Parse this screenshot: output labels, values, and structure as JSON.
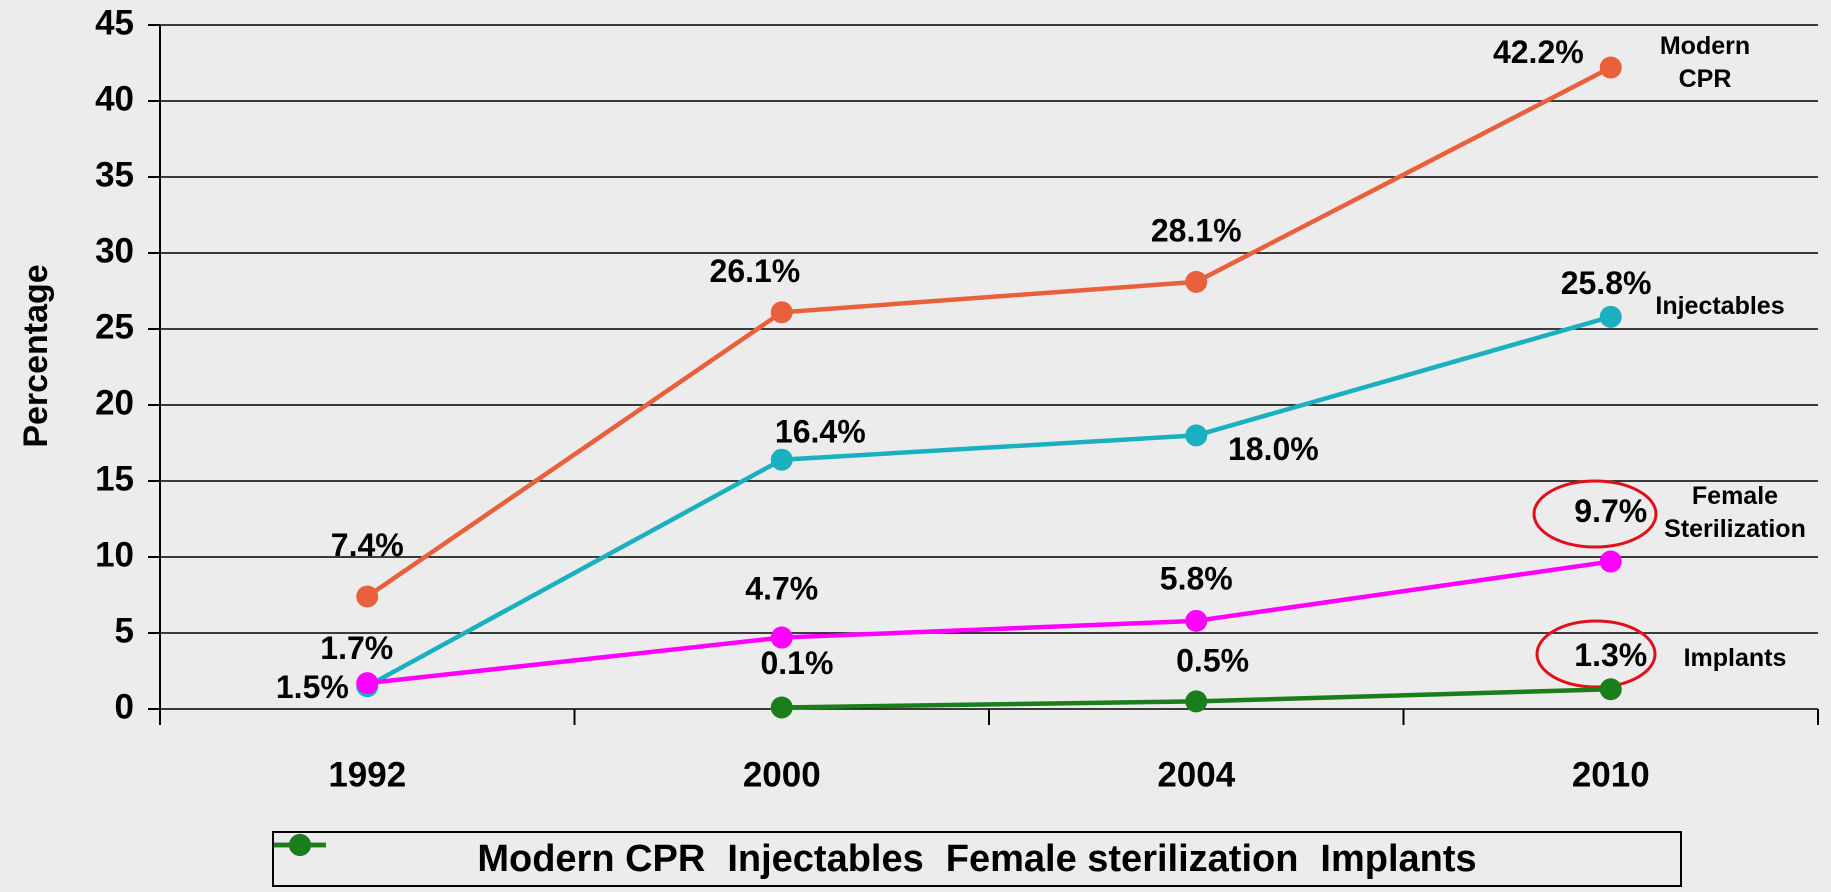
{
  "chart_data": {
    "type": "line",
    "ylabel": "Percentage",
    "categories": [
      "1992",
      "2000",
      "2004",
      "2010"
    ],
    "ylim": [
      0,
      45
    ],
    "yticks": [
      0,
      5,
      10,
      15,
      20,
      25,
      30,
      35,
      40,
      45
    ],
    "grid": true,
    "legend": "bottom",
    "series": [
      {
        "name": "Modern CPR",
        "color": "#e8603c",
        "values": [
          7.4,
          26.1,
          28.1,
          42.2
        ],
        "value_labels": [
          "7.4%",
          "26.1%",
          "28.1%",
          "42.2%"
        ]
      },
      {
        "name": "Injectables",
        "color": "#1ab0c0",
        "values": [
          1.5,
          16.4,
          18.0,
          25.8
        ],
        "value_labels": [
          "1.5%",
          "16.4%",
          "18.0%",
          "25.8%"
        ]
      },
      {
        "name": "Female sterilization",
        "color": "#ff00ff",
        "values": [
          1.7,
          4.7,
          5.8,
          9.7
        ],
        "value_labels": [
          "1.7%",
          "4.7%",
          "5.8%",
          "9.7%"
        ]
      },
      {
        "name": "Implants",
        "color": "#1a7f1a",
        "values": [
          null,
          0.1,
          0.5,
          1.3
        ],
        "value_labels": [
          null,
          "0.1%",
          "0.5%",
          "1.3%"
        ]
      }
    ],
    "annotations": [
      "Modern CPR",
      "Injectables",
      "Female Sterilization",
      "Implants"
    ]
  }
}
